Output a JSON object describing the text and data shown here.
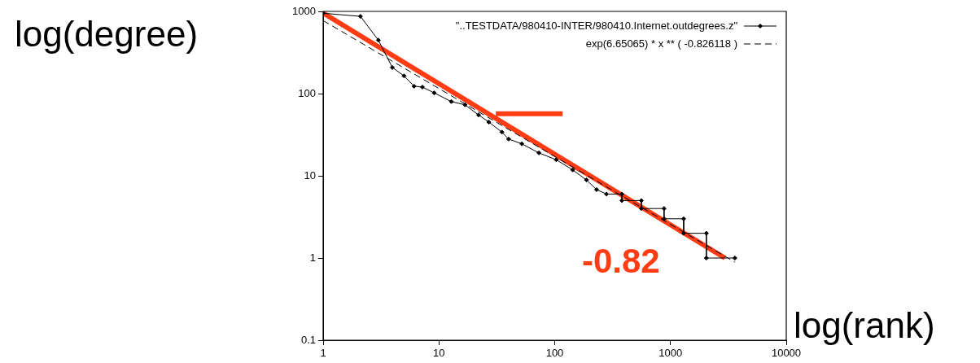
{
  "chart_data": {
    "type": "line",
    "xlabel": "log(rank)",
    "ylabel": "log(degree)",
    "annotations": [
      "-0.82"
    ],
    "log": "xy",
    "xlim": [
      1,
      10000
    ],
    "ylim": [
      0.1,
      1000
    ],
    "xticks": [
      1,
      10,
      100,
      1000,
      10000
    ],
    "yticks": [
      0.1,
      1,
      10,
      100,
      1000
    ],
    "legend": "top right",
    "series": [
      {
        "name": "\"..TESTDATA/980410-INTER/980410.Internet.outdegrees.z\"",
        "color": "#000000",
        "marker": "diamond",
        "line_style": "solid",
        "x": [
          1,
          2.1,
          3,
          3.96,
          5,
          6.1,
          7.2,
          9.1,
          12.8,
          16.8,
          22,
          27,
          35,
          40,
          52,
          73,
          103,
          143,
          188,
          230,
          280,
          380,
          380,
          560,
          560,
          880,
          880,
          1300,
          1300,
          2040,
          2040,
          3600
        ],
        "values": [
          950,
          870,
          447,
          208,
          164,
          123,
          120,
          102,
          80,
          73,
          55,
          45,
          34,
          28,
          24.5,
          19,
          15.7,
          11.8,
          8.9,
          6.8,
          6,
          6,
          5,
          5,
          4,
          4,
          3,
          3,
          2,
          2,
          1,
          1
        ]
      },
      {
        "name": "exp(6.65065) * x ** ( -0.826118 )",
        "color": "#000000",
        "marker": "none",
        "line_style": "dashed",
        "x": [
          1,
          3600
        ],
        "values": [
          773,
          0.89
        ]
      },
      {
        "color": "#ff3c14",
        "marker": "none",
        "line_style": "solid",
        "x": [
          1,
          2950
        ],
        "values": [
          955,
          1
        ]
      },
      {
        "color": "#ff3c14",
        "marker": "none",
        "line_style": "solid",
        "x": [
          31,
          117
        ],
        "values": [
          57,
          57
        ]
      }
    ]
  }
}
